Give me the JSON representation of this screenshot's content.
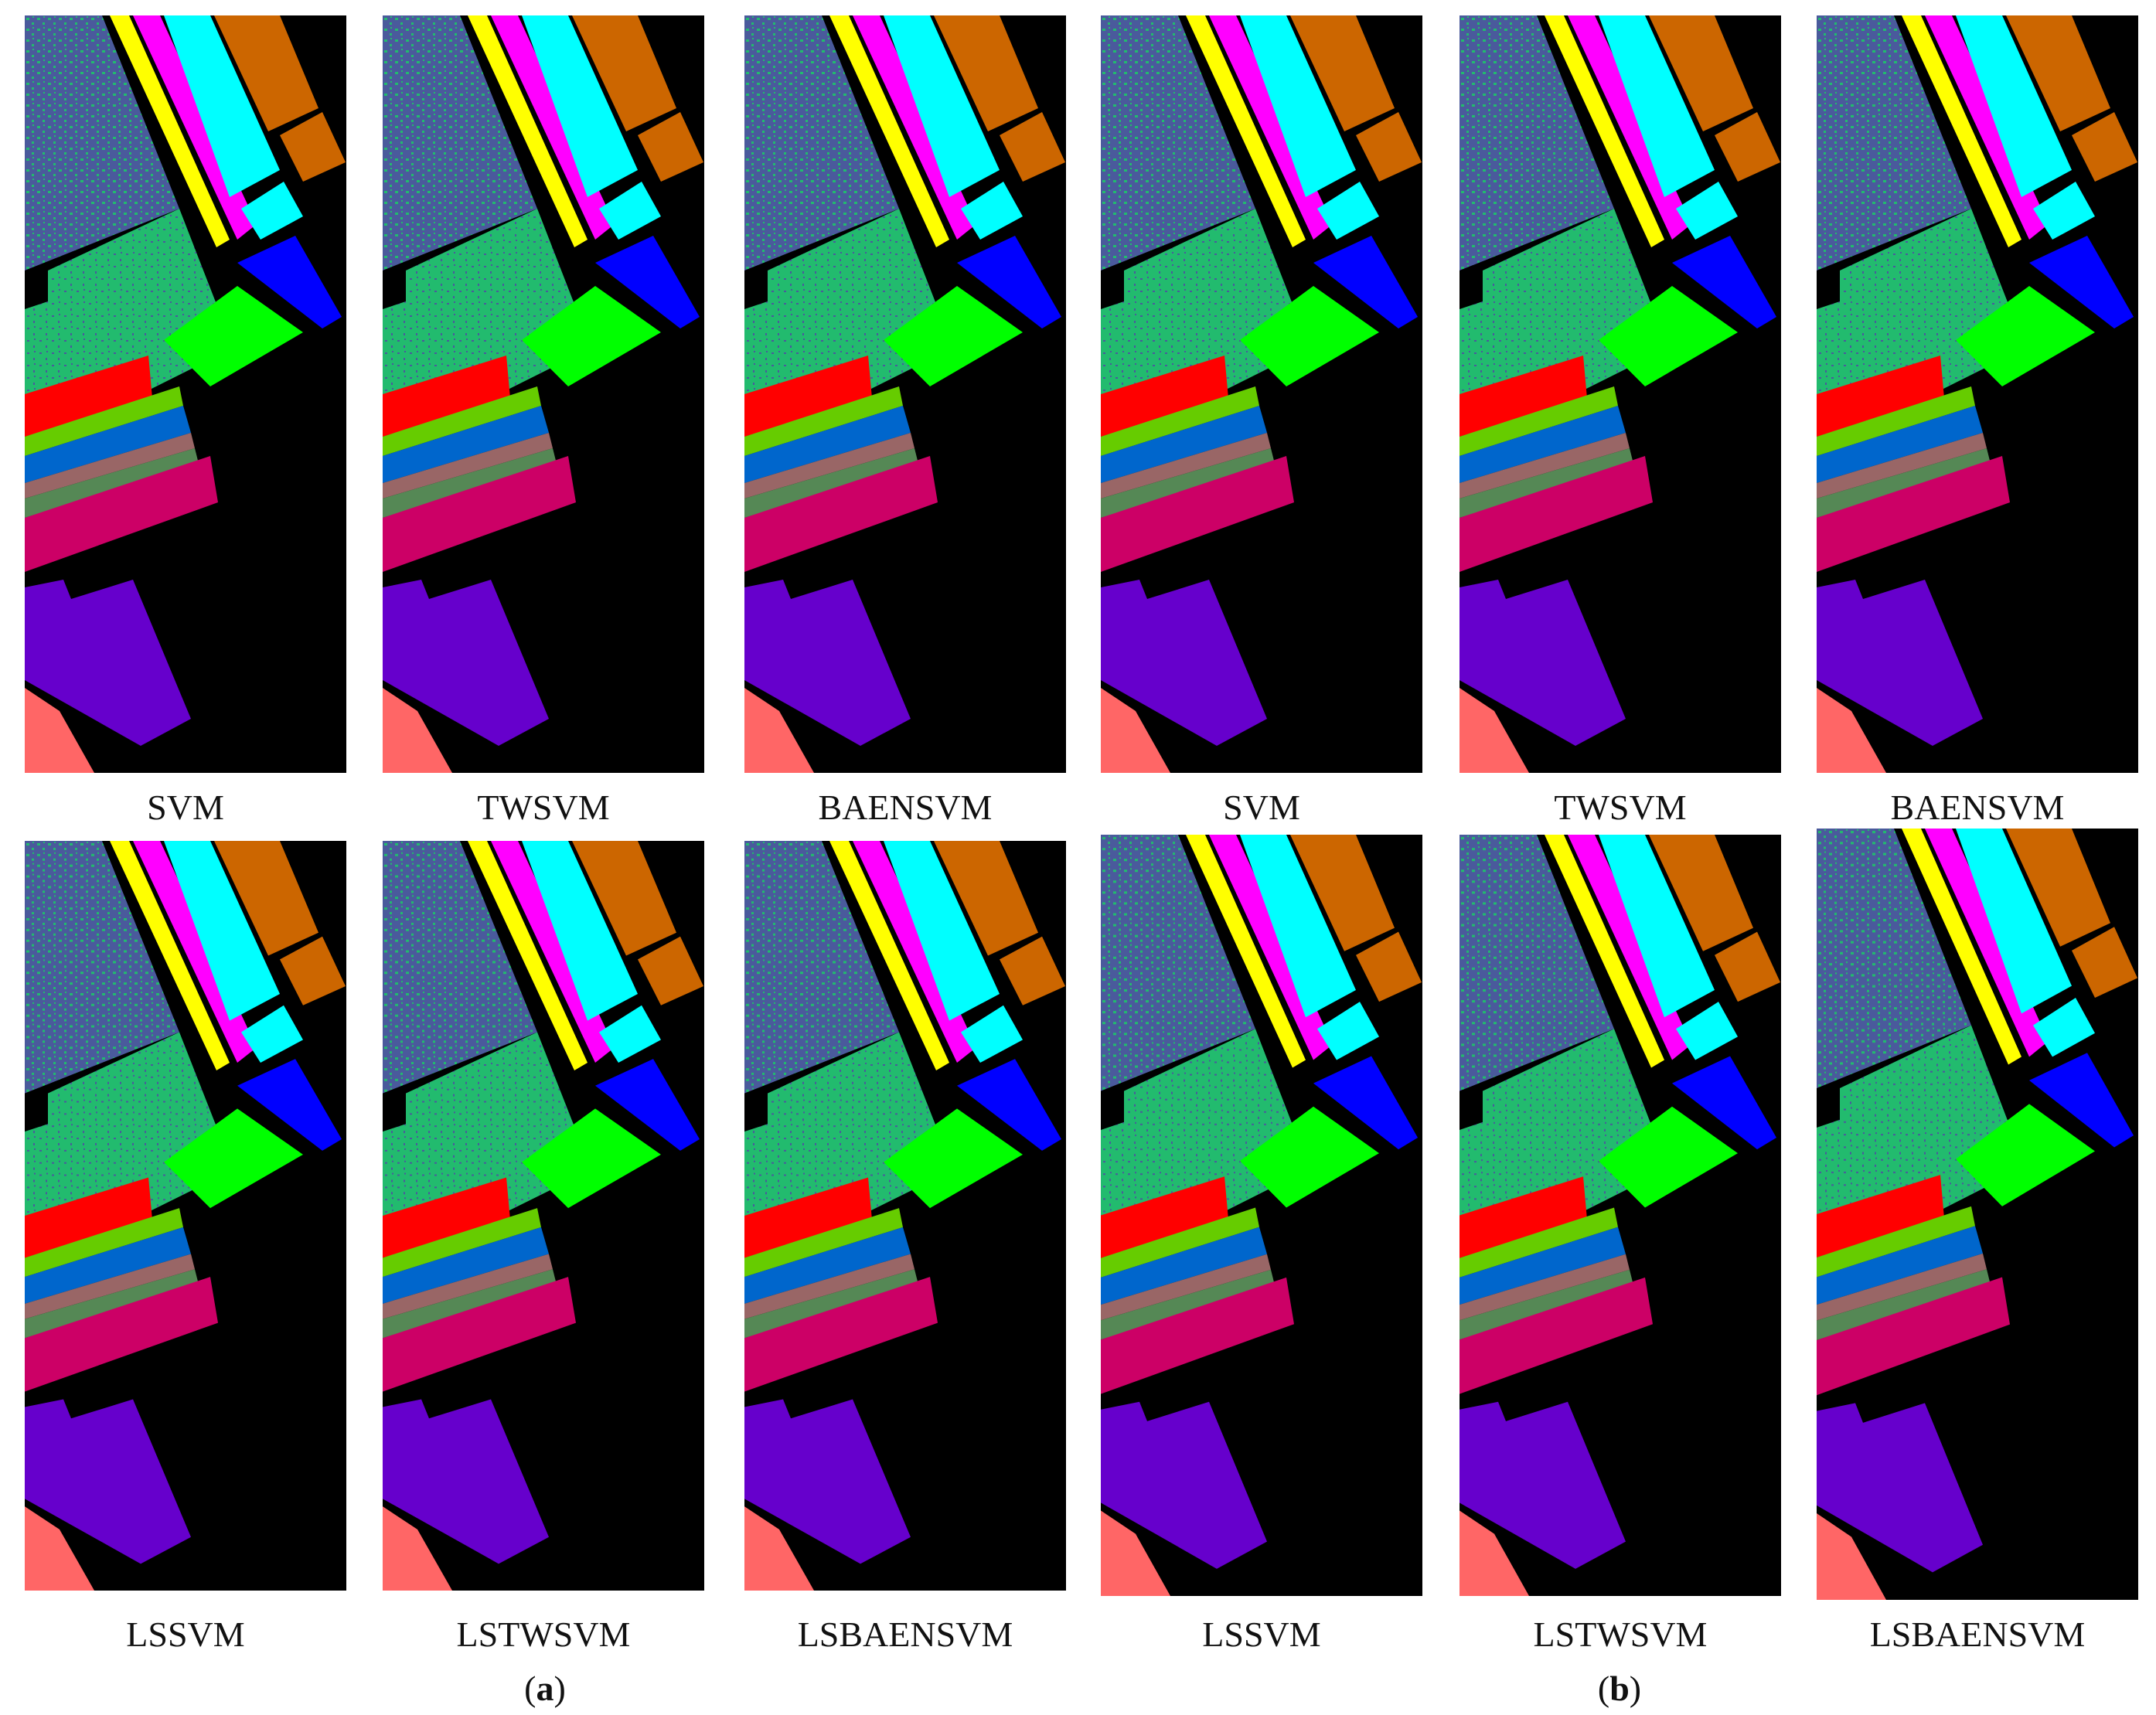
{
  "panels": [
    {
      "method": "SVM",
      "group": "a",
      "row": 1
    },
    {
      "method": "TWSVM",
      "group": "a",
      "row": 1
    },
    {
      "method": "BAENSVM",
      "group": "a",
      "row": 1
    },
    {
      "method": "SVM",
      "group": "b",
      "row": 1
    },
    {
      "method": "TWSVM",
      "group": "b",
      "row": 1
    },
    {
      "method": "BAENSVM",
      "group": "b",
      "row": 1
    },
    {
      "method": "LSSVM",
      "group": "a",
      "row": 2
    },
    {
      "method": "LSTWSVM",
      "group": "a",
      "row": 2
    },
    {
      "method": "LSBAENSVM",
      "group": "a",
      "row": 2
    },
    {
      "method": "LSSVM",
      "group": "b",
      "row": 2
    },
    {
      "method": "LSTWSVM",
      "group": "b",
      "row": 2
    },
    {
      "method": "LSBAENSVM",
      "group": "b",
      "row": 2
    }
  ],
  "subfigures": {
    "a": {
      "open": "(",
      "letter": "a",
      "close": ")"
    },
    "b": {
      "open": "(",
      "letter": "b",
      "close": ")"
    }
  },
  "class_colors": {
    "yellow": "#ffff00",
    "magenta": "#ff00ff",
    "cyan": "#00ffff",
    "orange": "#cc6600",
    "blue": "#0000ff",
    "lime": "#00ff00",
    "green": "#22bb6e",
    "slate": "#4a5a9c",
    "red": "#ff0000",
    "yellowgreen": "#66cc00",
    "steelblue": "#0066cc",
    "brown": "#996666",
    "olive": "#558855",
    "crimson": "#cc0066",
    "purple": "#6600cc",
    "salmon": "#ff6666"
  }
}
